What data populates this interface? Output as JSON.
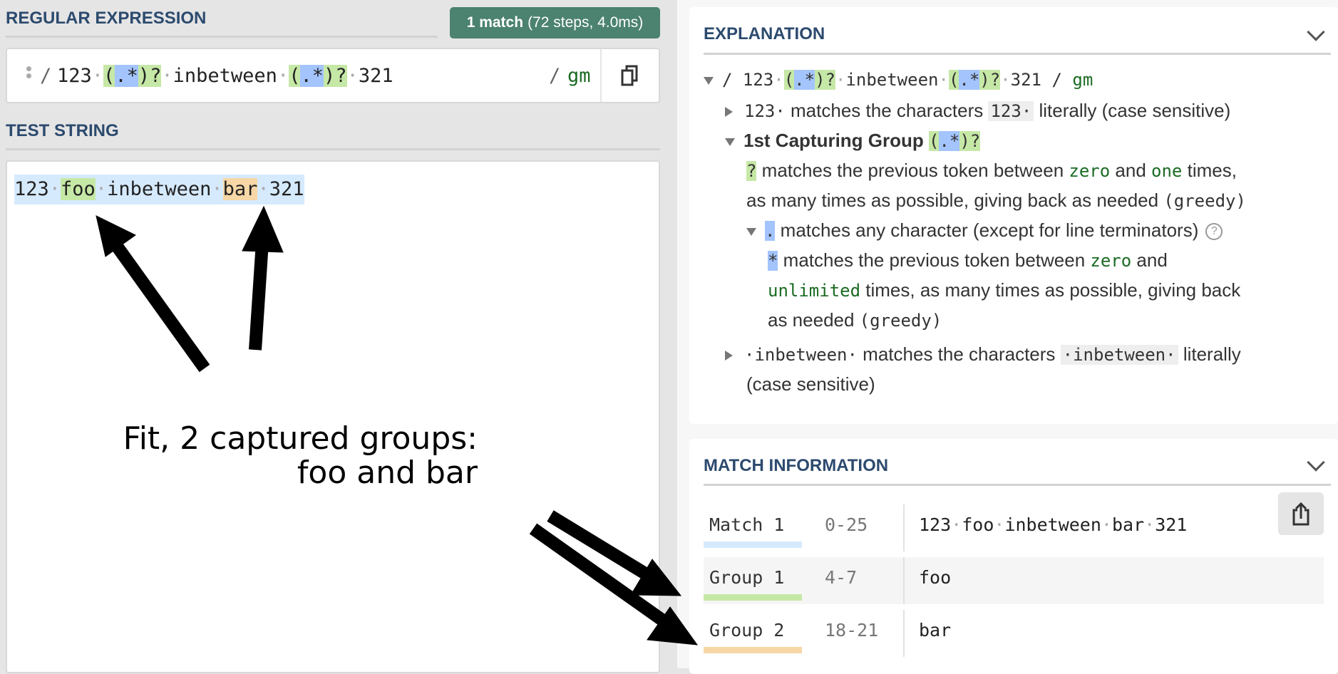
{
  "regex_section": {
    "title": "REGULAR EXPRESSION",
    "badge_count": "1 match",
    "badge_detail": "(72 steps, 4.0ms)",
    "delimiter": "/",
    "flags": "gm",
    "tokens": [
      [
        "123",
        ""
      ],
      [
        "·",
        "sp"
      ],
      [
        "(",
        "g"
      ],
      [
        ".",
        "b"
      ],
      [
        "*",
        "b"
      ],
      [
        ")",
        "g"
      ],
      [
        "?",
        "g"
      ],
      [
        "·",
        "sp"
      ],
      [
        "inbetween",
        ""
      ],
      [
        "·",
        "sp"
      ],
      [
        "(",
        "g"
      ],
      [
        ".",
        "b"
      ],
      [
        "*",
        "b"
      ],
      [
        ")",
        "g"
      ],
      [
        "?",
        "g"
      ],
      [
        "·",
        "sp"
      ],
      [
        "321",
        ""
      ]
    ]
  },
  "test_section": {
    "title": "TEST STRING",
    "tokens": [
      [
        "123",
        ""
      ],
      [
        "·",
        "sp"
      ],
      [
        "foo",
        "g"
      ],
      [
        "·",
        "sp"
      ],
      [
        "inbetween",
        ""
      ],
      [
        "·",
        "sp"
      ],
      [
        "bar",
        "o"
      ],
      [
        "·",
        "sp"
      ],
      [
        "321",
        ""
      ]
    ]
  },
  "explanation": {
    "title": "EXPLANATION",
    "root_open": "/ ",
    "root_close": " / ",
    "root_flags": "gm",
    "l1_token": "123·",
    "l1_text": " matches the characters ",
    "l1_lit": "123·",
    "l1_tail": " literally (case sensitive)",
    "g1_title": "1st Capturing Group ",
    "g1_tokens": [
      "(",
      ".*",
      ")?"
    ],
    "q_tok": "?",
    "q_a": " matches the previous token between ",
    "q_zero": "zero",
    "q_and": " and ",
    "q_one": "one",
    "q_b": " times,",
    "q_line2": "as many times as possible, giving back as needed ",
    "q_greedy": "(greedy)",
    "dot_tok": ".",
    "dot_text": " matches any character (except for line terminators)",
    "help": "?",
    "star_tok": "*",
    "star_a": " matches the previous token between ",
    "star_zero": "zero",
    "star_and": " and",
    "star_unl": "unlimited",
    "star_b": " times, as many times as possible, giving back",
    "star_line3": "as needed ",
    "star_greedy": "(greedy)",
    "l5_token": "·inbetween·",
    "l5_text": " matches the characters ",
    "l5_lit": "·inbetween·",
    "l5_tail": " literally",
    "l5_line2": "(case sensitive)"
  },
  "match_info": {
    "title": "MATCH INFORMATION",
    "rows": [
      {
        "label": "Match 1",
        "range": "0-25",
        "value": "123·foo·inbetween·bar·321",
        "color": "#d6eafd"
      },
      {
        "label": "Group 1",
        "range": "4-7",
        "value": "foo",
        "color": "#c6e8a6"
      },
      {
        "label": "Group 2",
        "range": "18-21",
        "value": "bar",
        "color": "#f7d7a6"
      }
    ]
  },
  "annotation": {
    "line1": "Fit, 2 captured groups:",
    "line2": "foo and bar"
  },
  "colors": {
    "accent": "#4b8270",
    "group1": "#c6e8a6",
    "group2": "#f7d7a6",
    "match": "#d6eafd",
    "quantifier_token": "#a3c4fd"
  }
}
